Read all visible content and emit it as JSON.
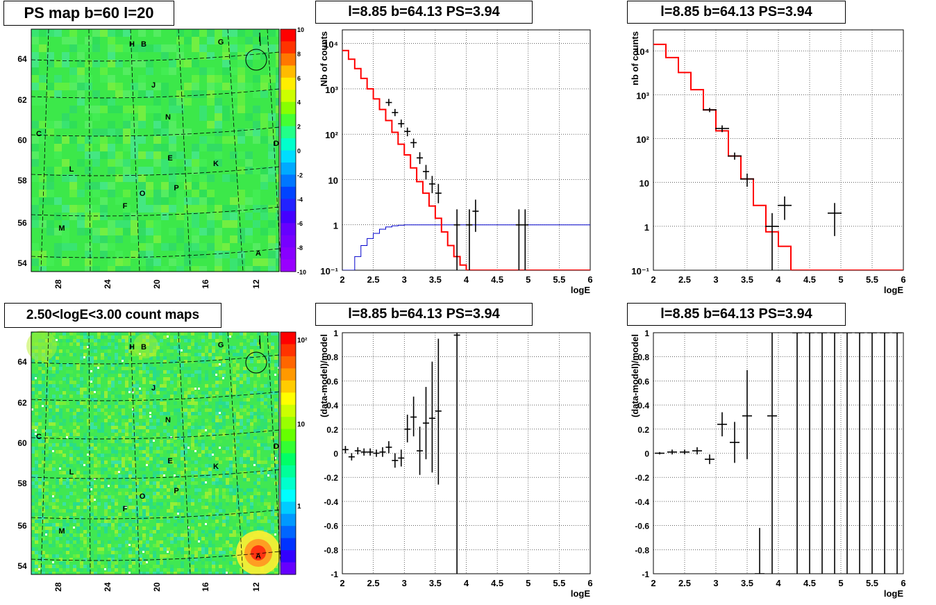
{
  "panels": {
    "ps_map": {
      "title": "PS map b=60 l=20"
    },
    "count_map": {
      "title": "2.50<logE<3.00 count maps"
    },
    "spectrum_left": {
      "title": "l=8.85 b=64.13 PS=3.94"
    },
    "spectrum_right": {
      "title": "l=8.85 b=64.13 PS=3.94"
    },
    "residual_left": {
      "title": "l=8.85 b=64.13 PS=3.94"
    },
    "residual_right": {
      "title": "l=8.85 b=64.13 PS=3.94"
    }
  },
  "sky_map": {
    "x_ticks": [
      "28",
      "24",
      "20",
      "16",
      "12"
    ],
    "y_ticks": [
      "64",
      "62",
      "60",
      "58",
      "56",
      "54"
    ],
    "source_labels": [
      "H",
      "B",
      "G",
      "I",
      "J",
      "N",
      "C",
      "D",
      "E",
      "K",
      "L",
      "P",
      "O",
      "F",
      "M",
      "A"
    ],
    "ps_colorbar_ticks": [
      "10",
      "8",
      "6",
      "4",
      "2",
      "0",
      "-2",
      "-4",
      "-6",
      "-8",
      "-10"
    ],
    "count_colorbar_ticks": [
      "10²",
      "10",
      "1"
    ]
  },
  "colors": {
    "data_markers": "#000000",
    "model_histogram": "#ff0000",
    "blue_curve": "#0000cc",
    "map_green": "#33ee44"
  },
  "chart_data": [
    {
      "id": "spectrum_left",
      "type": "line",
      "title": "l=8.85 b=64.13 PS=3.94",
      "xlabel": "logE",
      "ylabel": "Nb of counts",
      "xlim": [
        2,
        6
      ],
      "ylim": [
        0.1,
        20000
      ],
      "yscale": "log",
      "grid": true,
      "x_ticks": [
        "2",
        "2.5",
        "3",
        "3.5",
        "4",
        "4.5",
        "5",
        "5.5",
        "6"
      ],
      "y_ticks": [
        "10⁻¹",
        "1",
        "10",
        "10²",
        "10³",
        "10⁴"
      ],
      "model_step": {
        "edges": [
          2.0,
          2.1,
          2.2,
          2.3,
          2.4,
          2.5,
          2.6,
          2.7,
          2.8,
          2.9,
          3.0,
          3.1,
          3.2,
          3.3,
          3.4,
          3.5,
          3.6,
          3.7,
          3.8,
          3.9,
          4.0,
          4.1,
          4.2,
          4.3,
          6.0
        ],
        "values": [
          7000,
          4500,
          2800,
          1700,
          1000,
          600,
          350,
          200,
          110,
          60,
          35,
          18,
          9,
          5,
          2.6,
          1.4,
          0.7,
          0.35,
          0.2,
          0.13,
          0.1,
          0.1,
          0.1,
          0.1
        ]
      },
      "data_points": [
        {
          "x": 2.75,
          "y": 500,
          "ylo": 420,
          "yhi": 600
        },
        {
          "x": 2.85,
          "y": 300,
          "ylo": 250,
          "yhi": 360
        },
        {
          "x": 2.95,
          "y": 170,
          "ylo": 140,
          "yhi": 210
        },
        {
          "x": 3.05,
          "y": 115,
          "ylo": 90,
          "yhi": 140
        },
        {
          "x": 3.15,
          "y": 65,
          "ylo": 50,
          "yhi": 80
        },
        {
          "x": 3.25,
          "y": 30,
          "ylo": 22,
          "yhi": 40
        },
        {
          "x": 3.35,
          "y": 15,
          "ylo": 10,
          "yhi": 21
        },
        {
          "x": 3.45,
          "y": 8,
          "ylo": 5,
          "yhi": 12
        },
        {
          "x": 3.55,
          "y": 5,
          "ylo": 3,
          "yhi": 8
        },
        {
          "x": 3.85,
          "y": 1,
          "ylo": 0.1,
          "yhi": 2.2
        },
        {
          "x": 4.05,
          "y": 1,
          "ylo": 0.1,
          "yhi": 2.2
        },
        {
          "x": 4.15,
          "y": 2,
          "ylo": 0.7,
          "yhi": 3.6
        },
        {
          "x": 4.85,
          "y": 1,
          "ylo": 0.1,
          "yhi": 2.2
        },
        {
          "x": 4.95,
          "y": 1,
          "ylo": 0.1,
          "yhi": 2.2
        }
      ],
      "blue_curve": {
        "x": [
          2.0,
          2.1,
          2.2,
          2.3,
          2.4,
          2.5,
          2.6,
          2.7,
          2.8,
          2.9,
          3.0,
          3.1,
          3.2,
          6.0
        ],
        "y": [
          0.1,
          0.1,
          0.2,
          0.35,
          0.5,
          0.65,
          0.8,
          0.9,
          0.95,
          0.98,
          1,
          1,
          1,
          1
        ]
      }
    },
    {
      "id": "spectrum_right",
      "type": "line",
      "title": "l=8.85 b=64.13 PS=3.94",
      "xlabel": "logE",
      "ylabel": "nb of counts",
      "xlim": [
        2,
        6
      ],
      "ylim": [
        0.1,
        30000
      ],
      "yscale": "log",
      "grid": true,
      "x_ticks": [
        "2",
        "2.5",
        "3",
        "3.5",
        "4",
        "4.5",
        "5",
        "5.5",
        "6"
      ],
      "y_ticks": [
        "10⁻¹",
        "1",
        "10",
        "10²",
        "10³",
        "10⁴"
      ],
      "model_step": {
        "edges": [
          2.0,
          2.2,
          2.4,
          2.6,
          2.8,
          3.0,
          3.2,
          3.4,
          3.6,
          3.8,
          4.0,
          4.2,
          6.0
        ],
        "values": [
          14000,
          7000,
          3200,
          1300,
          450,
          150,
          40,
          12,
          3,
          0.75,
          0.35,
          0.1
        ]
      },
      "data_points": [
        {
          "x": 2.9,
          "y": 450,
          "ylo": 400,
          "yhi": 500
        },
        {
          "x": 3.1,
          "y": 170,
          "ylo": 140,
          "yhi": 200
        },
        {
          "x": 3.3,
          "y": 40,
          "ylo": 33,
          "yhi": 48
        },
        {
          "x": 3.5,
          "y": 12,
          "ylo": 8,
          "yhi": 16
        },
        {
          "x": 3.9,
          "y": 1,
          "ylo": 0.1,
          "yhi": 2
        },
        {
          "x": 4.1,
          "y": 3,
          "ylo": 1.4,
          "yhi": 4.8
        },
        {
          "x": 4.9,
          "y": 2,
          "ylo": 0.6,
          "yhi": 3.4
        }
      ]
    },
    {
      "id": "residual_left",
      "type": "scatter",
      "title": "l=8.85 b=64.13 PS=3.94",
      "xlabel": "logE",
      "ylabel": "(data-model)/model",
      "xlim": [
        2,
        6
      ],
      "ylim": [
        -1,
        1
      ],
      "grid": true,
      "x_ticks": [
        "2",
        "2.5",
        "3",
        "3.5",
        "4",
        "4.5",
        "5",
        "5.5",
        "6"
      ],
      "y_ticks": [
        "1",
        "0.8",
        "0.6",
        "0.4",
        "0.2",
        "0",
        "-0.2",
        "-0.4",
        "-0.6",
        "-0.8",
        "-1"
      ],
      "data_points": [
        {
          "x": 2.05,
          "y": 0.03,
          "ylo": 0.0,
          "yhi": 0.06
        },
        {
          "x": 2.15,
          "y": -0.03,
          "ylo": -0.06,
          "yhi": 0.0
        },
        {
          "x": 2.25,
          "y": 0.02,
          "ylo": -0.01,
          "yhi": 0.05
        },
        {
          "x": 2.35,
          "y": 0.01,
          "ylo": -0.02,
          "yhi": 0.04
        },
        {
          "x": 2.45,
          "y": 0.01,
          "ylo": -0.02,
          "yhi": 0.04
        },
        {
          "x": 2.55,
          "y": 0.0,
          "ylo": -0.03,
          "yhi": 0.03
        },
        {
          "x": 2.65,
          "y": 0.01,
          "ylo": -0.03,
          "yhi": 0.05
        },
        {
          "x": 2.75,
          "y": 0.05,
          "ylo": 0.0,
          "yhi": 0.1
        },
        {
          "x": 2.85,
          "y": -0.06,
          "ylo": -0.12,
          "yhi": 0.0
        },
        {
          "x": 2.95,
          "y": -0.04,
          "ylo": -0.11,
          "yhi": 0.03
        },
        {
          "x": 3.05,
          "y": 0.2,
          "ylo": 0.09,
          "yhi": 0.32
        },
        {
          "x": 3.15,
          "y": 0.3,
          "ylo": 0.14,
          "yhi": 0.47
        },
        {
          "x": 3.25,
          "y": 0.02,
          "ylo": -0.18,
          "yhi": 0.22
        },
        {
          "x": 3.35,
          "y": 0.25,
          "ylo": -0.05,
          "yhi": 0.55
        },
        {
          "x": 3.45,
          "y": 0.29,
          "ylo": -0.16,
          "yhi": 0.76
        },
        {
          "x": 3.55,
          "y": 0.35,
          "ylo": -0.26,
          "yhi": 0.95
        },
        {
          "x": 3.85,
          "y": 0.98,
          "ylo": -1.0,
          "yhi": 1.0
        }
      ]
    },
    {
      "id": "residual_right",
      "type": "scatter",
      "title": "l=8.85 b=64.13 PS=3.94",
      "xlabel": "logE",
      "ylabel": "(data-model)/model",
      "xlim": [
        2,
        6
      ],
      "ylim": [
        -1,
        1
      ],
      "grid": true,
      "x_ticks": [
        "2",
        "2.5",
        "3",
        "3.5",
        "4",
        "4.5",
        "5",
        "5.5",
        "6"
      ],
      "y_ticks": [
        "1",
        "0.8",
        "0.6",
        "0.4",
        "0.2",
        "0",
        "-0.2",
        "-0.4",
        "-0.6",
        "-0.8",
        "-1"
      ],
      "data_points": [
        {
          "x": 2.1,
          "y": 0.0,
          "ylo": -0.01,
          "yhi": 0.01
        },
        {
          "x": 2.3,
          "y": 0.01,
          "ylo": -0.01,
          "yhi": 0.03
        },
        {
          "x": 2.5,
          "y": 0.01,
          "ylo": -0.01,
          "yhi": 0.03
        },
        {
          "x": 2.7,
          "y": 0.02,
          "ylo": -0.01,
          "yhi": 0.05
        },
        {
          "x": 2.9,
          "y": -0.05,
          "ylo": -0.09,
          "yhi": -0.01
        },
        {
          "x": 3.1,
          "y": 0.24,
          "ylo": 0.14,
          "yhi": 0.34
        },
        {
          "x": 3.3,
          "y": 0.09,
          "ylo": -0.08,
          "yhi": 0.26
        },
        {
          "x": 3.5,
          "y": 0.31,
          "ylo": -0.05,
          "yhi": 0.69
        },
        {
          "x": 3.7,
          "y": -1.0,
          "ylo": -1.0,
          "yhi": -0.62
        },
        {
          "x": 3.9,
          "y": 0.31,
          "ylo": -1.0,
          "yhi": 1.0
        },
        {
          "x": 4.3,
          "y": 1.0,
          "ylo": -1.0,
          "yhi": 1.0
        },
        {
          "x": 4.5,
          "y": 1.0,
          "ylo": -1.0,
          "yhi": 1.0
        },
        {
          "x": 4.7,
          "y": 1.0,
          "ylo": -1.0,
          "yhi": 1.0
        },
        {
          "x": 4.9,
          "y": 1.0,
          "ylo": -1.0,
          "yhi": 1.0
        },
        {
          "x": 5.1,
          "y": 1.0,
          "ylo": -1.0,
          "yhi": 1.0
        },
        {
          "x": 5.3,
          "y": 1.0,
          "ylo": -1.0,
          "yhi": 1.0
        },
        {
          "x": 5.5,
          "y": 1.0,
          "ylo": -1.0,
          "yhi": 1.0
        },
        {
          "x": 5.7,
          "y": 1.0,
          "ylo": -1.0,
          "yhi": 1.0
        },
        {
          "x": 5.9,
          "y": 1.0,
          "ylo": -1.0,
          "yhi": 1.0
        }
      ]
    }
  ]
}
